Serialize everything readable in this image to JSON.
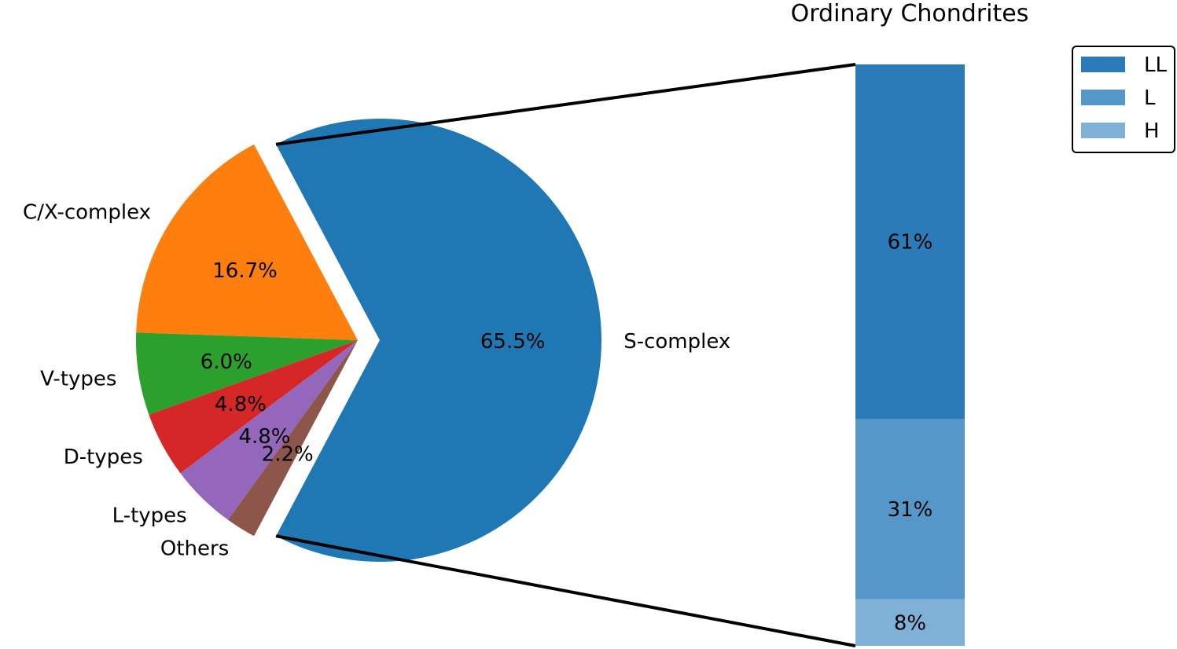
{
  "chart_data": [
    {
      "type": "pie",
      "title": "",
      "slices": [
        {
          "label": "S-complex",
          "value": 65.5,
          "pct_label": "65.5%",
          "color": "#1f77b4",
          "exploded": true
        },
        {
          "label": "C/X-complex",
          "value": 16.7,
          "pct_label": "16.7%",
          "color": "#ff7f0e",
          "exploded": false
        },
        {
          "label": "V-types",
          "value": 6.0,
          "pct_label": "6.0%",
          "color": "#2ca02c",
          "exploded": false
        },
        {
          "label": "D-types",
          "value": 4.8,
          "pct_label": "4.8%",
          "color": "#d62728",
          "exploded": false
        },
        {
          "label": "L-types",
          "value": 4.8,
          "pct_label": "4.8%",
          "color": "#9467bd",
          "exploded": false
        },
        {
          "label": "Others",
          "value": 2.2,
          "pct_label": "2.2%",
          "color": "#8c564b",
          "exploded": false
        }
      ]
    },
    {
      "type": "bar",
      "stacked": true,
      "title": "Ordinary Chondrites",
      "series": [
        {
          "name": "LL",
          "value": 61,
          "label": "61%",
          "color": "#2a7bb7"
        },
        {
          "name": "L",
          "value": 31,
          "label": "31%",
          "color": "#5597c8"
        },
        {
          "name": "H",
          "value": 8,
          "label": "8%",
          "color": "#7fb1d7"
        }
      ],
      "legend_position": "top-right"
    }
  ]
}
